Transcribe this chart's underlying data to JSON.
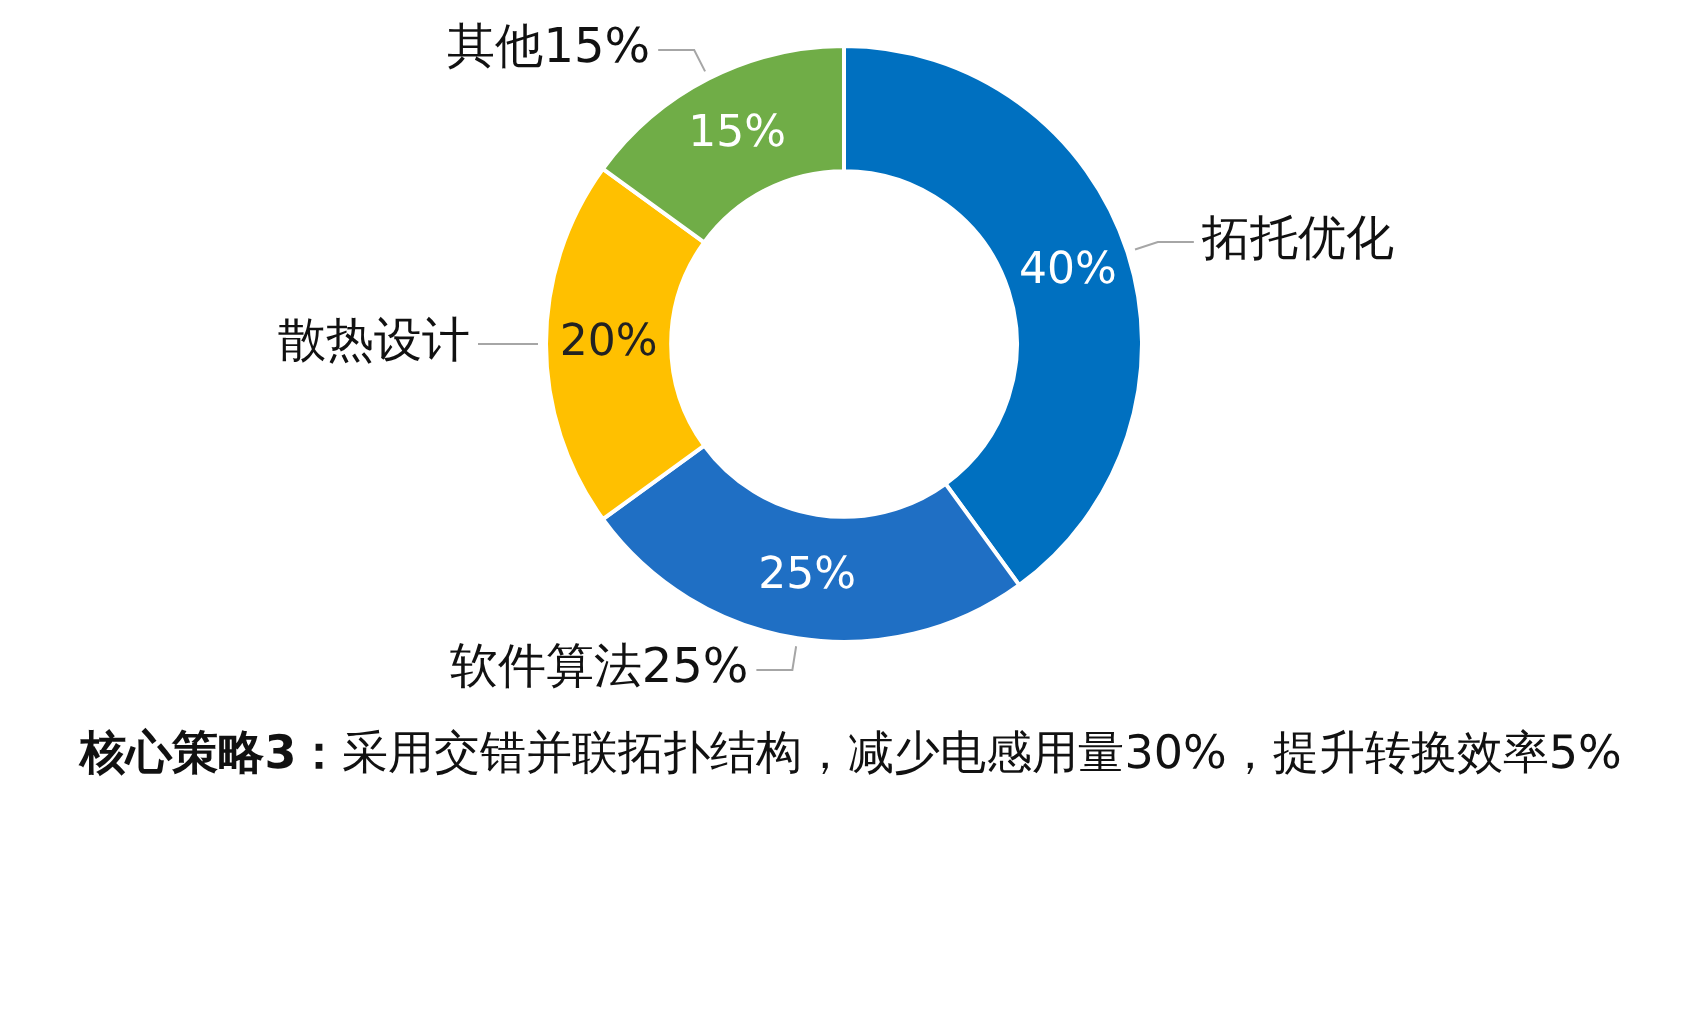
{
  "chart_data": {
    "type": "donut",
    "categories": [
      "拓托优化",
      "软件算法25%",
      "散热设计",
      "其他15%"
    ],
    "values": [
      40,
      25,
      20,
      15
    ],
    "colors": [
      "#0070c0",
      "#1f6fc4",
      "#ffc000",
      "#70ad47"
    ],
    "value_labels": [
      "40%",
      "25%",
      "20%",
      "15%"
    ],
    "legend": false,
    "annotations": [
      "核心策略3：",
      "采用交错并联拓扑结构，减少电感用量30%，提升转换效率5%"
    ]
  }
}
